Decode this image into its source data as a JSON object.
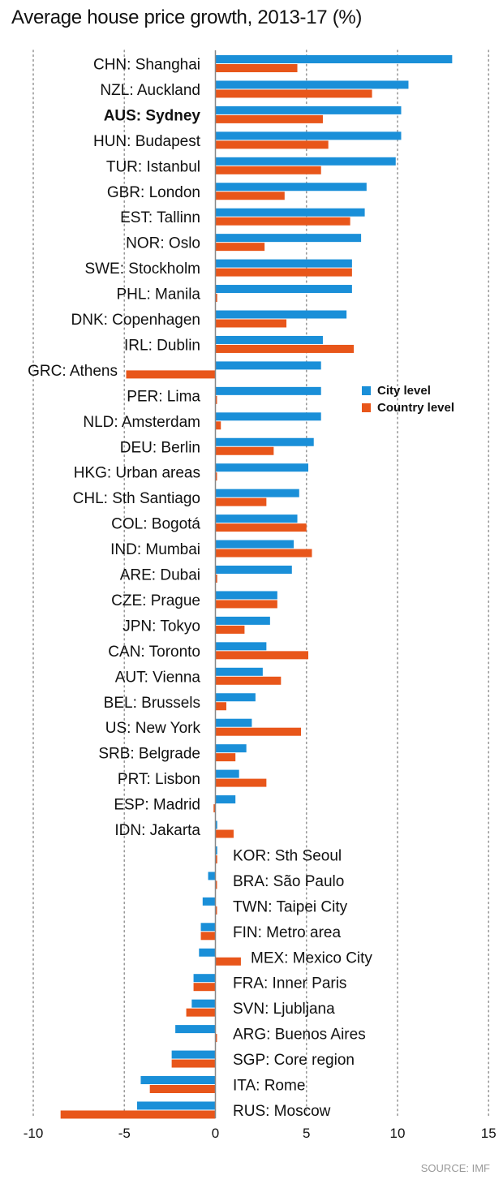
{
  "title": "Average house price growth, 2013-17 (%)",
  "source": "SOURCE: IMF",
  "colors": {
    "city": "#1a8fd8",
    "country": "#e8561a",
    "axis": "#888888",
    "grid": "#999999",
    "text": "#111111"
  },
  "chart_data": {
    "type": "bar",
    "orientation": "horizontal",
    "title": "Average house price growth, 2013-17 (%)",
    "xlim": [
      -10,
      15
    ],
    "xticks": [
      "-10",
      "-5",
      "0",
      "5",
      "10",
      "15"
    ],
    "grid": "vertical dotted",
    "legend_position": "middle-right",
    "highlight": "AUS: Sydney",
    "categories": [
      "CHN: Shanghai",
      "NZL: Auckland",
      "AUS: Sydney",
      "HUN: Budapest",
      "TUR: Istanbul",
      "GBR: London",
      "EST: Tallinn",
      "NOR: Oslo",
      "SWE: Stockholm",
      "PHL: Manila",
      "DNK: Copenhagen",
      "IRL: Dublin",
      "GRC: Athens",
      "PER: Lima",
      "NLD: Amsterdam",
      "DEU: Berlin",
      "HKG: Urban areas",
      "CHL: Sth Santiago",
      "COL: Bogotá",
      "IND: Mumbai",
      "ARE: Dubai",
      "CZE: Prague",
      "JPN: Tokyo",
      "CAN: Toronto",
      "AUT: Vienna",
      "BEL: Brussels",
      "US: New York",
      "SRB: Belgrade",
      "PRT: Lisbon",
      "ESP: Madrid",
      "IDN: Jakarta",
      "KOR: Sth Seoul",
      "BRA: São Paulo",
      "TWN: Taipei City",
      "FIN: Metro area",
      "MEX: Mexico City",
      "FRA: Inner Paris",
      "SVN: Ljubljana",
      "ARG: Buenos Aires",
      "SGP: Core region",
      "ITA: Rome",
      "RUS: Moscow"
    ],
    "series": [
      {
        "name": "City level",
        "values": [
          13.0,
          10.6,
          10.2,
          10.2,
          9.9,
          8.3,
          8.2,
          8.0,
          7.5,
          7.5,
          7.2,
          5.9,
          5.8,
          5.8,
          5.8,
          5.4,
          5.1,
          4.6,
          4.5,
          4.3,
          4.2,
          3.4,
          3.0,
          2.8,
          2.6,
          2.2,
          2.0,
          1.7,
          1.3,
          1.1,
          0.1,
          0.1,
          -0.4,
          -0.7,
          -0.8,
          -0.9,
          -1.2,
          -1.3,
          -2.2,
          -2.4,
          -4.1,
          -4.3
        ]
      },
      {
        "name": "Country level",
        "values": [
          4.5,
          8.6,
          5.9,
          6.2,
          5.8,
          3.8,
          7.4,
          2.7,
          7.5,
          0.1,
          3.9,
          7.6,
          -4.9,
          0.05,
          0.3,
          3.2,
          0.05,
          2.8,
          5.0,
          5.3,
          0.1,
          3.4,
          1.6,
          5.1,
          3.6,
          0.6,
          4.7,
          1.1,
          2.8,
          -0.1,
          1.0,
          0.1,
          0.05,
          0.05,
          -0.8,
          1.4,
          -1.2,
          -1.6,
          0.05,
          -2.4,
          -3.6,
          -8.5
        ]
      }
    ]
  }
}
